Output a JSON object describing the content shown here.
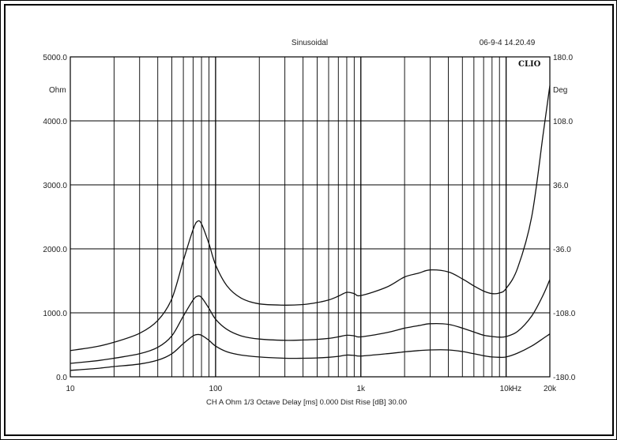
{
  "chart_data": {
    "type": "line",
    "title": "Sinusoidal",
    "timestamp": "06-9-4 14.20.49",
    "brand": "CLIO",
    "x_scale": "log",
    "xlim": [
      10,
      20000
    ],
    "x_unit": "Hz",
    "x_ticks": [
      {
        "value": 10,
        "label": "10"
      },
      {
        "value": 100,
        "label": "100"
      },
      {
        "value": 1000,
        "label": "1k"
      },
      {
        "value": 10000,
        "label": "10k"
      },
      {
        "value": 20000,
        "label": "20k"
      }
    ],
    "y_left": {
      "unit": "Ohm",
      "range": [
        0,
        5000
      ],
      "ticks": [
        {
          "value": 0,
          "label": "0.0"
        },
        {
          "value": 1000,
          "label": "1000.0"
        },
        {
          "value": 2000,
          "label": "2000.0"
        },
        {
          "value": 3000,
          "label": "3000.0"
        },
        {
          "value": 4000,
          "label": "4000.0"
        },
        {
          "value": 5000,
          "label": "5000.0"
        }
      ]
    },
    "y_right": {
      "unit": "Deg",
      "range": [
        -180,
        180
      ],
      "ticks": [
        {
          "value": 180,
          "label": "180.0"
        },
        {
          "value": 108,
          "label": "108.0"
        },
        {
          "value": 36,
          "label": "36.0"
        },
        {
          "value": -36,
          "label": "-36.0"
        },
        {
          "value": -108,
          "label": "-108.0"
        },
        {
          "value": -180,
          "label": "-180.0"
        }
      ]
    },
    "grid": true,
    "footer": "CH A   Ohm   1/3 Octave   Delay [ms] 0.000   Dist Rise [dB] 30.00",
    "x": [
      10,
      15,
      20,
      30,
      40,
      50,
      60,
      70,
      75,
      80,
      90,
      100,
      120,
      150,
      200,
      300,
      400,
      500,
      600,
      700,
      800,
      900,
      1000,
      1500,
      2000,
      2500,
      3000,
      4000,
      5000,
      6000,
      7000,
      8000,
      9000,
      10000,
      12000,
      15000,
      18000,
      20000
    ],
    "series": [
      {
        "values": [
          410,
          470,
          540,
          680,
          880,
          1220,
          1820,
          2300,
          2430,
          2390,
          2080,
          1750,
          1420,
          1230,
          1140,
          1120,
          1130,
          1160,
          1200,
          1260,
          1320,
          1300,
          1270,
          1400,
          1560,
          1620,
          1670,
          1640,
          1530,
          1420,
          1340,
          1300,
          1310,
          1380,
          1700,
          2500,
          3800,
          4550
        ]
      },
      {
        "values": [
          210,
          250,
          290,
          360,
          460,
          640,
          950,
          1200,
          1260,
          1240,
          1070,
          900,
          740,
          640,
          590,
          570,
          575,
          585,
          600,
          625,
          650,
          640,
          625,
          690,
          760,
          800,
          830,
          820,
          760,
          700,
          650,
          630,
          620,
          630,
          710,
          950,
          1280,
          1520
        ]
      },
      {
        "values": [
          100,
          130,
          160,
          200,
          260,
          360,
          520,
          640,
          660,
          650,
          570,
          480,
          390,
          340,
          310,
          290,
          290,
          295,
          305,
          320,
          340,
          335,
          325,
          360,
          390,
          410,
          420,
          420,
          395,
          360,
          330,
          310,
          305,
          310,
          370,
          480,
          600,
          670
        ]
      }
    ]
  }
}
